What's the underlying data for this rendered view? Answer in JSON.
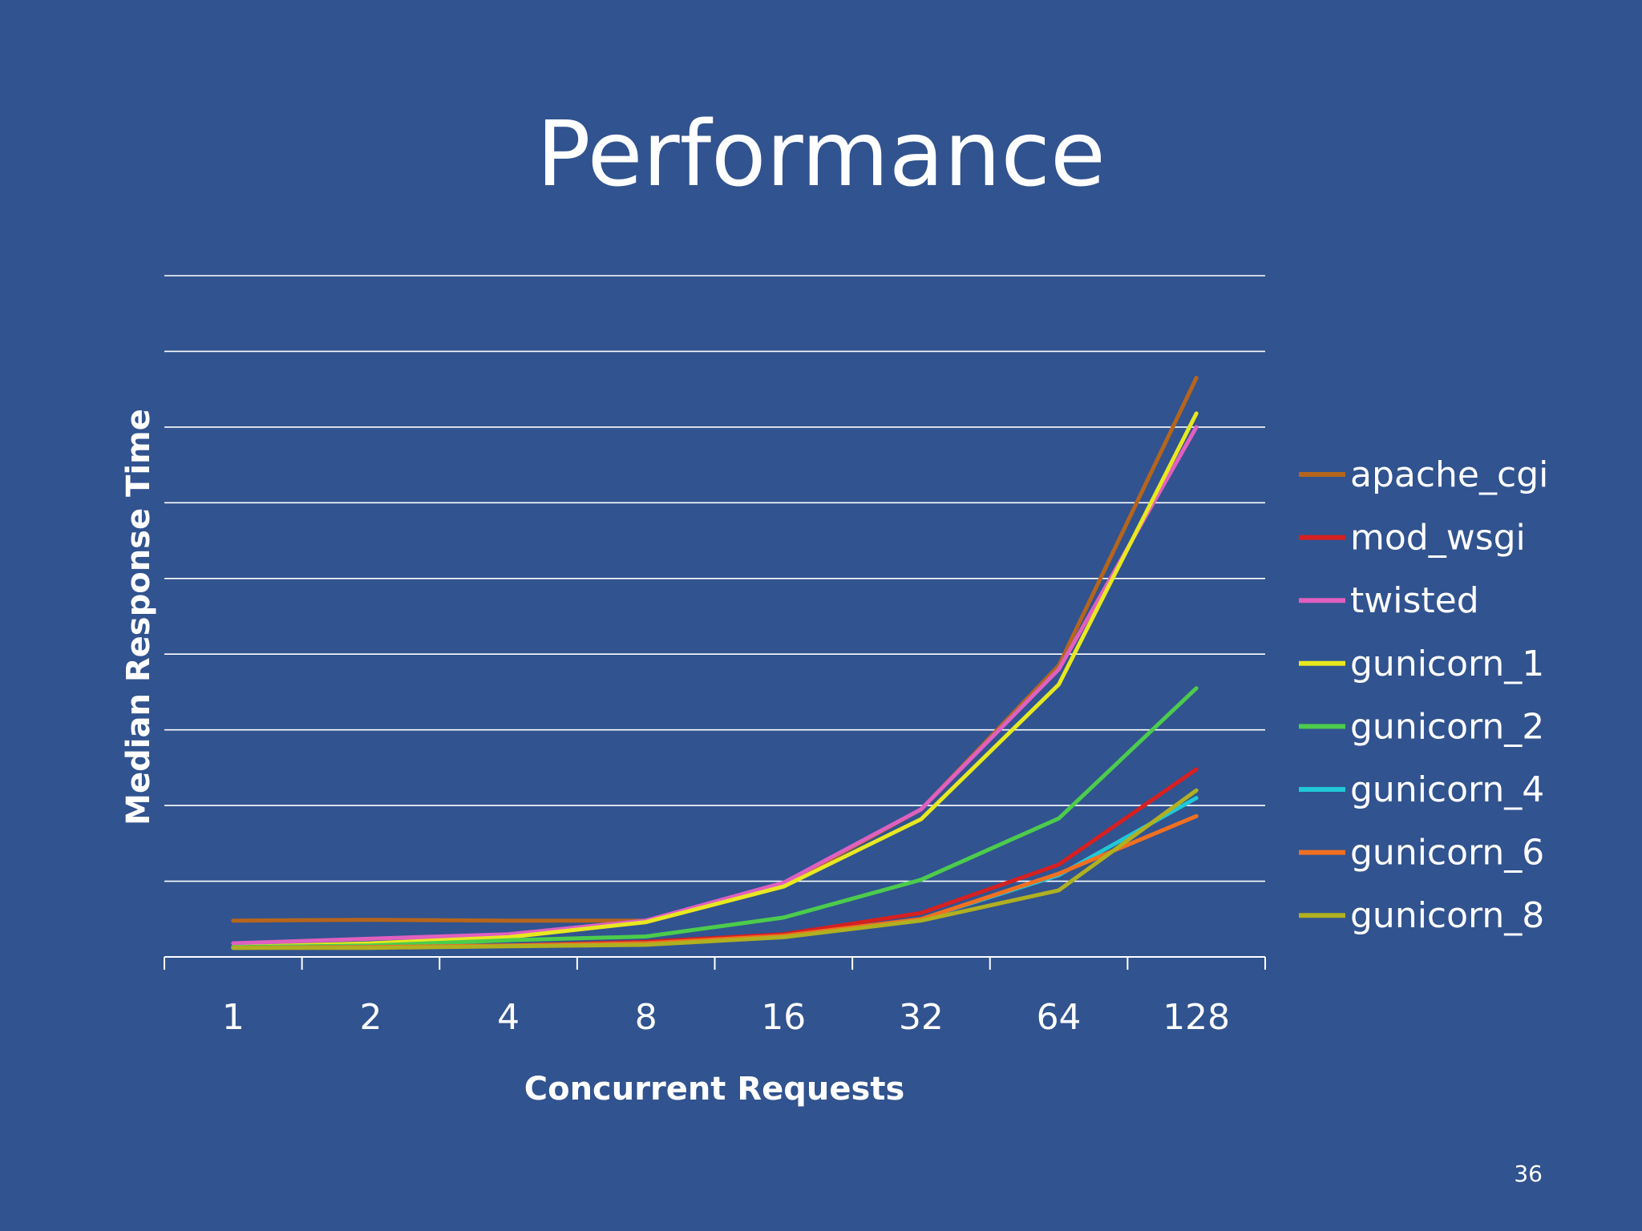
{
  "slide": {
    "title": "Performance",
    "number": "36"
  },
  "chart_data": {
    "type": "line",
    "title": "",
    "xlabel": "Concurrent Requests",
    "ylabel": "Median Response Time",
    "categories": [
      "1",
      "2",
      "4",
      "8",
      "16",
      "32",
      "64",
      "128"
    ],
    "ylim": [
      0,
      9
    ],
    "y_gridlines": 9,
    "y_tick_labels_shown": false,
    "grid": true,
    "legend": "right",
    "series": [
      {
        "name": "apache_cgi",
        "color": "#b5651d",
        "values": [
          0.48,
          0.49,
          0.48,
          0.48,
          0.95,
          1.95,
          3.85,
          7.65
        ]
      },
      {
        "name": "mod_wsgi",
        "color": "#d62020",
        "values": [
          0.13,
          0.13,
          0.15,
          0.2,
          0.3,
          0.58,
          1.22,
          2.48
        ]
      },
      {
        "name": "twisted",
        "color": "#e060c0",
        "values": [
          0.18,
          0.24,
          0.3,
          0.48,
          0.98,
          1.95,
          3.8,
          7.0
        ]
      },
      {
        "name": "gunicorn_1",
        "color": "#e8e820",
        "values": [
          0.13,
          0.18,
          0.26,
          0.46,
          0.93,
          1.82,
          3.6,
          7.18
        ]
      },
      {
        "name": "gunicorn_2",
        "color": "#4ccc4c",
        "values": [
          0.13,
          0.15,
          0.22,
          0.27,
          0.52,
          1.02,
          1.83,
          3.55
        ]
      },
      {
        "name": "gunicorn_4",
        "color": "#20c8d8",
        "values": [
          0.12,
          0.13,
          0.15,
          0.18,
          0.26,
          0.5,
          1.08,
          2.1
        ]
      },
      {
        "name": "gunicorn_6",
        "color": "#f07020",
        "values": [
          0.12,
          0.13,
          0.15,
          0.18,
          0.28,
          0.5,
          1.1,
          1.86
        ]
      },
      {
        "name": "gunicorn_8",
        "color": "#b0b020",
        "values": [
          0.12,
          0.12,
          0.14,
          0.16,
          0.26,
          0.48,
          0.88,
          2.2
        ]
      }
    ]
  }
}
